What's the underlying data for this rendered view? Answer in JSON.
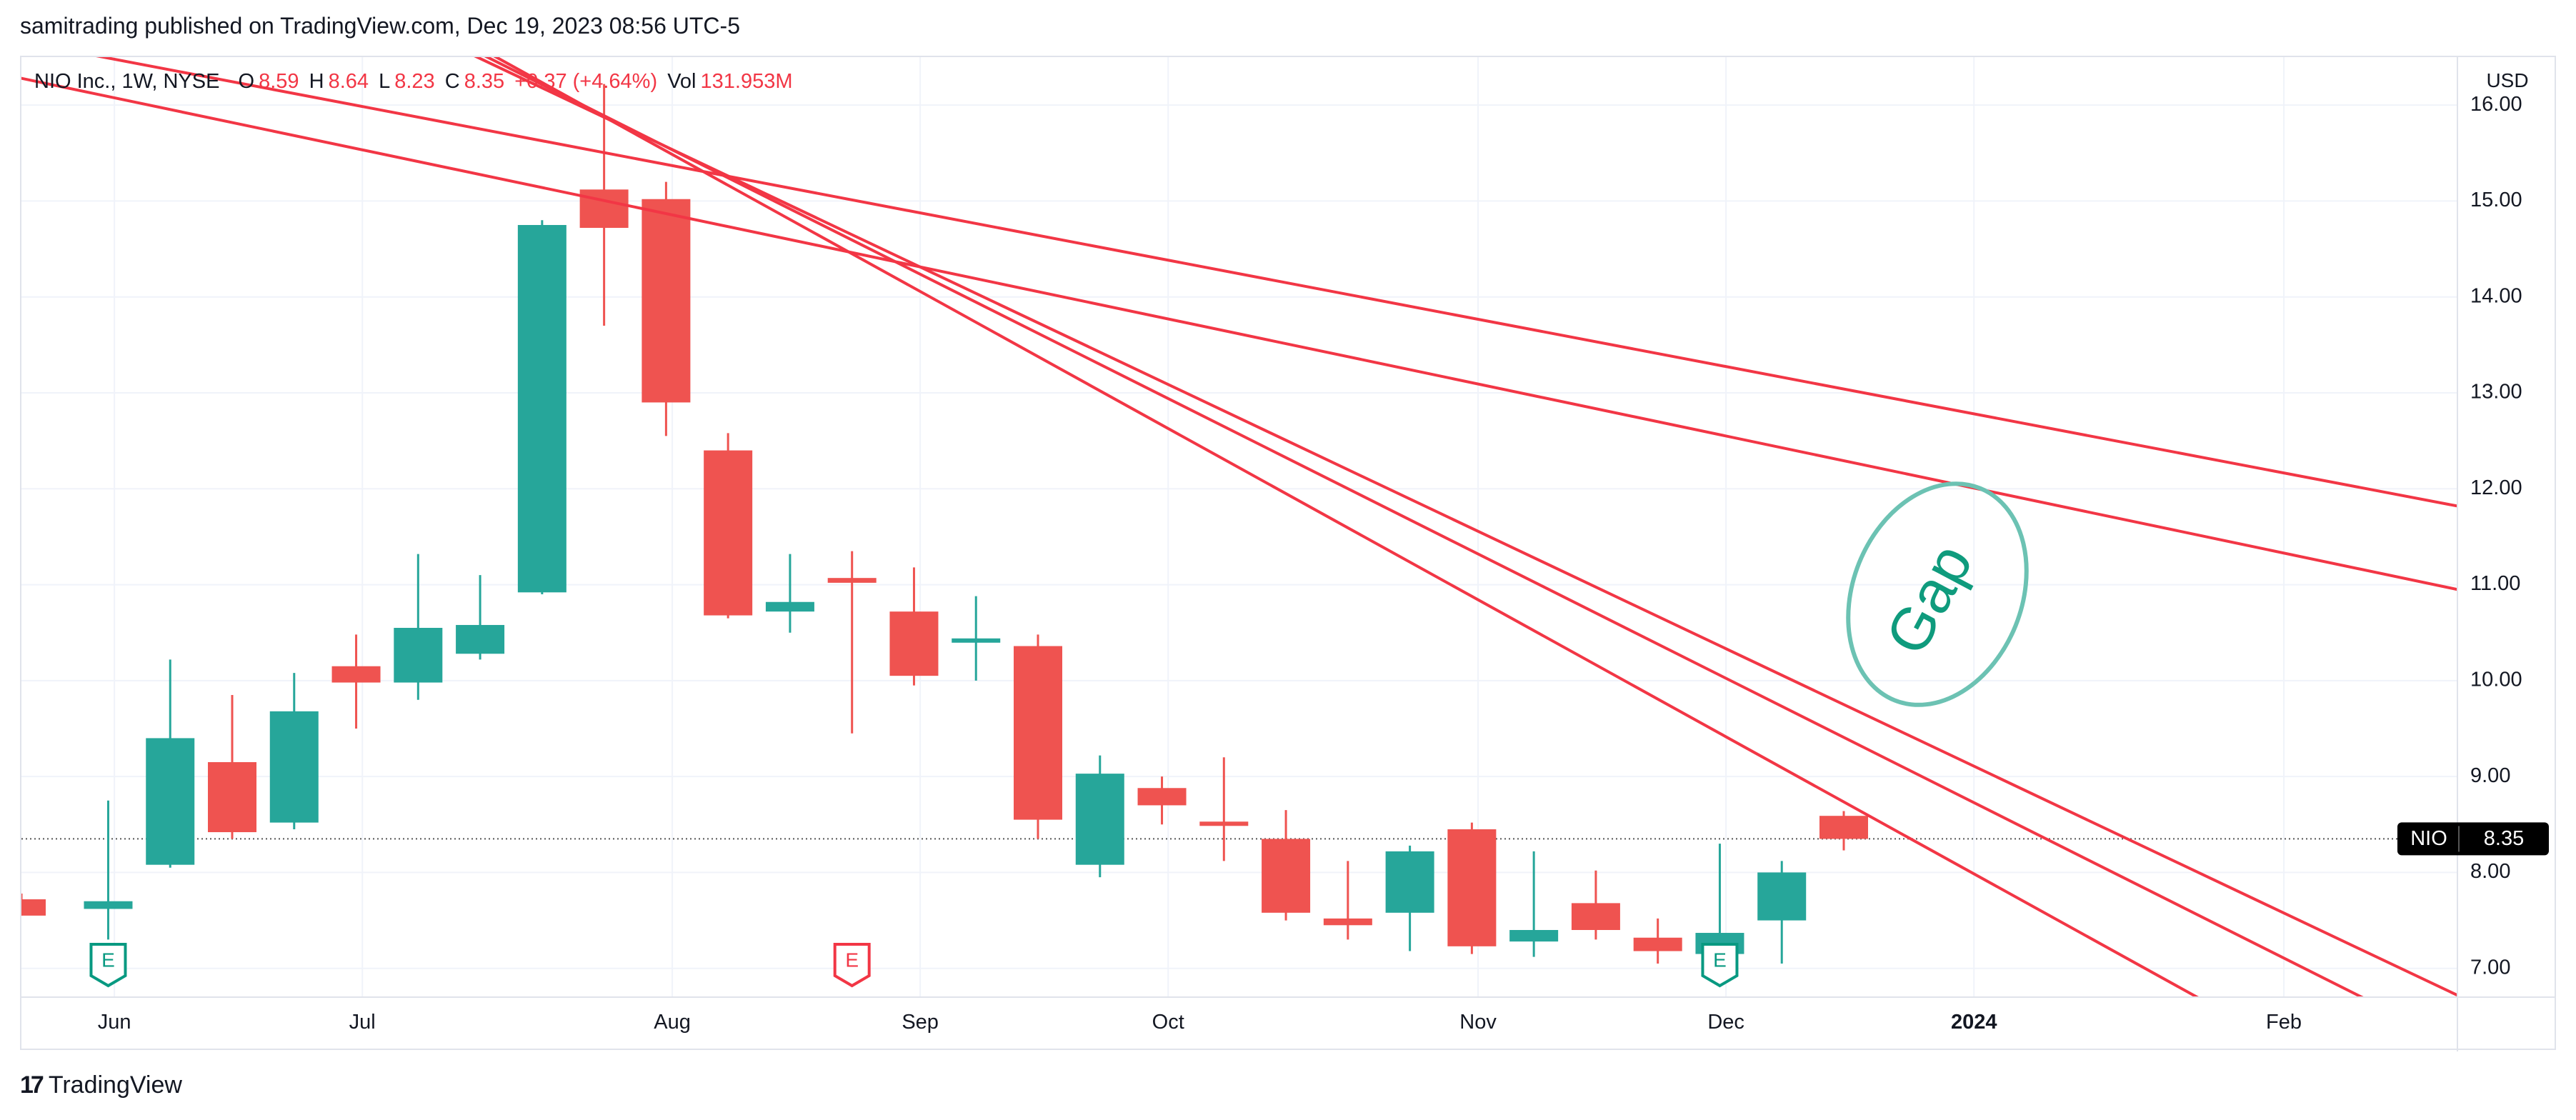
{
  "header": {
    "published_by": "samitrading published on TradingView.com, Dec 19, 2023 08:56 UTC-5"
  },
  "legend": {
    "title": "NIO Inc., 1W, NYSE",
    "o_label": "O",
    "o_value": "8.59",
    "h_label": "H",
    "h_value": "8.64",
    "l_label": "L",
    "l_value": "8.23",
    "c_label": "C",
    "c_value": "8.35",
    "change": "+0.37 (+4.64%)",
    "vol_label": "Vol",
    "vol_value": "131.953M"
  },
  "currency": "USD",
  "price_tag": {
    "symbol": "NIO",
    "value": "8.35"
  },
  "footer": {
    "brand": "TradingView"
  },
  "annotation": {
    "text": "Gap"
  },
  "colors": {
    "up": "#26a69a",
    "down": "#ef5350",
    "trendline": "#f23645",
    "text": "#131722",
    "grid": "#f0f3fa"
  },
  "chart_data": {
    "type": "candlestick",
    "interval": "1W",
    "yticks": [
      "7.00",
      "8.00",
      "9.00",
      "10.00",
      "11.00",
      "12.00",
      "13.00",
      "14.00",
      "15.00",
      "16.00"
    ],
    "xticks": [
      {
        "label": "Jun",
        "x": 0.8
      },
      {
        "label": "Jul",
        "x": 4.8
      },
      {
        "label": "Aug",
        "x": 9.8
      },
      {
        "label": "Sep",
        "x": 13.8
      },
      {
        "label": "Oct",
        "x": 17.8
      },
      {
        "label": "Nov",
        "x": 22.8
      },
      {
        "label": "Dec",
        "x": 26.8
      },
      {
        "label": "2024",
        "x": 30.8
      },
      {
        "label": "Feb",
        "x": 35.8
      }
    ],
    "ylim": [
      6.7,
      16.5
    ],
    "xlim": [
      -0.7,
      38.6
    ],
    "grid": true,
    "earnings_markers": [
      {
        "x": 0.7,
        "label": "E",
        "color": "#089981"
      },
      {
        "x": 12.7,
        "label": "E",
        "color": "#f23645"
      },
      {
        "x": 26.7,
        "label": "E",
        "color": "#089981"
      }
    ],
    "candles": [
      {
        "x": -0.7,
        "o": 7.72,
        "h": 7.78,
        "l": 7.55,
        "c": 7.55
      },
      {
        "x": 0.7,
        "o": 7.62,
        "h": 8.75,
        "l": 7.3,
        "c": 7.7
      },
      {
        "x": 1.7,
        "o": 8.08,
        "h": 10.22,
        "l": 8.05,
        "c": 9.4
      },
      {
        "x": 2.7,
        "o": 9.15,
        "h": 9.85,
        "l": 8.35,
        "c": 8.42
      },
      {
        "x": 3.7,
        "o": 8.52,
        "h": 10.08,
        "l": 8.45,
        "c": 9.68
      },
      {
        "x": 4.7,
        "o": 10.15,
        "h": 10.48,
        "l": 9.5,
        "c": 9.98
      },
      {
        "x": 5.7,
        "o": 9.98,
        "h": 11.32,
        "l": 9.8,
        "c": 10.55
      },
      {
        "x": 6.7,
        "o": 10.28,
        "h": 11.1,
        "l": 10.22,
        "c": 10.58
      },
      {
        "x": 7.7,
        "o": 10.92,
        "h": 14.8,
        "l": 10.9,
        "c": 14.75
      },
      {
        "x": 8.7,
        "o": 15.12,
        "h": 16.22,
        "l": 13.7,
        "c": 14.72
      },
      {
        "x": 9.7,
        "o": 15.02,
        "h": 15.2,
        "l": 12.55,
        "c": 12.9
      },
      {
        "x": 10.7,
        "o": 12.4,
        "h": 12.58,
        "l": 10.65,
        "c": 10.68
      },
      {
        "x": 11.7,
        "o": 10.72,
        "h": 11.32,
        "l": 10.5,
        "c": 10.82
      },
      {
        "x": 12.7,
        "o": 11.07,
        "h": 11.35,
        "l": 9.45,
        "c": 11.02
      },
      {
        "x": 13.7,
        "o": 10.72,
        "h": 11.18,
        "l": 9.95,
        "c": 10.05
      },
      {
        "x": 14.7,
        "o": 10.4,
        "h": 10.88,
        "l": 10.0,
        "c": 10.44
      },
      {
        "x": 15.7,
        "o": 10.36,
        "h": 10.48,
        "l": 8.35,
        "c": 8.55
      },
      {
        "x": 16.7,
        "o": 8.08,
        "h": 9.22,
        "l": 7.95,
        "c": 9.03
      },
      {
        "x": 17.7,
        "o": 8.88,
        "h": 9.0,
        "l": 8.5,
        "c": 8.7
      },
      {
        "x": 18.7,
        "o": 8.53,
        "h": 9.2,
        "l": 8.12,
        "c": 8.5
      },
      {
        "x": 19.7,
        "o": 8.35,
        "h": 8.65,
        "l": 7.5,
        "c": 7.58
      },
      {
        "x": 20.7,
        "o": 7.52,
        "h": 8.12,
        "l": 7.3,
        "c": 7.45
      },
      {
        "x": 21.7,
        "o": 7.58,
        "h": 8.28,
        "l": 7.18,
        "c": 8.22
      },
      {
        "x": 22.7,
        "o": 8.45,
        "h": 8.52,
        "l": 7.15,
        "c": 7.23
      },
      {
        "x": 23.7,
        "o": 7.28,
        "h": 8.22,
        "l": 7.12,
        "c": 7.4
      },
      {
        "x": 24.7,
        "o": 7.68,
        "h": 8.02,
        "l": 7.3,
        "c": 7.4
      },
      {
        "x": 25.7,
        "o": 7.32,
        "h": 7.52,
        "l": 7.05,
        "c": 7.18
      },
      {
        "x": 26.7,
        "o": 7.15,
        "h": 8.3,
        "l": 7.12,
        "c": 7.37
      },
      {
        "x": 27.7,
        "o": 7.5,
        "h": 8.12,
        "l": 7.05,
        "c": 8.0
      },
      {
        "x": 28.7,
        "o": 8.59,
        "h": 8.64,
        "l": 8.23,
        "c": 8.35
      }
    ],
    "trendlines": [
      {
        "x1": -1.0,
        "y1": 16.7,
        "x2": 38.6,
        "y2": 11.82
      },
      {
        "x1": -1.0,
        "y1": 16.32,
        "x2": 38.6,
        "y2": 10.95
      },
      {
        "x1": 6.0,
        "y1": 16.7,
        "x2": 38.6,
        "y2": 6.72
      },
      {
        "x1": 6.2,
        "y1": 16.7,
        "x2": 38.6,
        "y2": 6.2
      },
      {
        "x1": 6.4,
        "y1": 16.7,
        "x2": 38.6,
        "y2": 5.2
      }
    ],
    "last_price": 8.35
  }
}
